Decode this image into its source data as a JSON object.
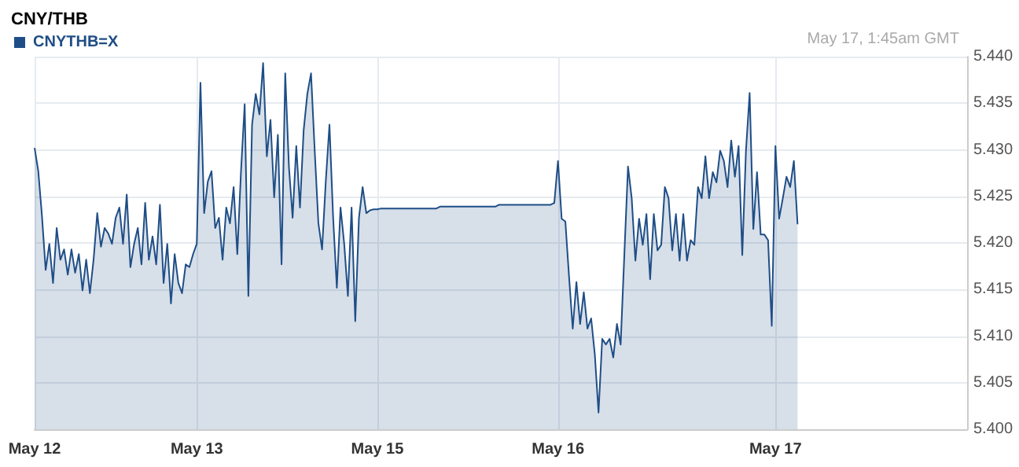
{
  "chart_data": {
    "type": "area",
    "title": "CNY/THB",
    "annotations": [
      "May 17, 1:45am GMT"
    ],
    "categories": [
      "May 12",
      null,
      null,
      null,
      null,
      null,
      null,
      null,
      null,
      null,
      null,
      null,
      null,
      null,
      null,
      null,
      null,
      null,
      null,
      null,
      null,
      null,
      null,
      null,
      null,
      null,
      null,
      null,
      null,
      null,
      null,
      null,
      null,
      null,
      null,
      null,
      null,
      null,
      null,
      null,
      null,
      null,
      null,
      null,
      "May 13",
      null,
      null,
      null,
      null,
      null,
      null,
      null,
      null,
      null,
      null,
      null,
      null,
      null,
      null,
      null,
      null,
      null,
      null,
      null,
      null,
      null,
      null,
      null,
      null,
      null,
      null,
      null,
      null,
      null,
      null,
      null,
      null,
      null,
      null,
      null,
      null,
      null,
      null,
      null,
      null,
      null,
      null,
      null,
      null,
      null,
      null,
      null,
      null,
      "May 15",
      null,
      null,
      null,
      null,
      null,
      null,
      null,
      null,
      null,
      null,
      null,
      null,
      null,
      null,
      null,
      null,
      null,
      null,
      null,
      null,
      null,
      null,
      null,
      null,
      null,
      null,
      null,
      null,
      null,
      null,
      null,
      null,
      null,
      null,
      null,
      null,
      null,
      null,
      null,
      null,
      null,
      null,
      null,
      null,
      null,
      null,
      null,
      null,
      "May 16",
      null,
      null,
      null,
      null,
      null,
      null,
      null,
      null,
      null,
      null,
      null,
      null,
      null,
      null,
      null,
      null,
      null,
      null,
      null,
      null,
      null,
      null,
      null,
      null,
      null,
      null,
      null,
      null,
      null,
      null,
      null,
      null,
      null,
      null,
      null,
      null,
      null,
      null,
      null,
      null,
      null,
      null,
      null,
      null,
      null,
      null,
      null,
      null,
      null,
      null,
      null,
      null,
      null,
      null,
      null,
      null,
      null,
      null,
      "May 17",
      null,
      null,
      null,
      null,
      null,
      null,
      null,
      null,
      null,
      null,
      null,
      null,
      null,
      null,
      null,
      null,
      null,
      null,
      null,
      null,
      null,
      null,
      null,
      null,
      null,
      null,
      null,
      null,
      null,
      null,
      null,
      null,
      null,
      null,
      null,
      null,
      null,
      null,
      null,
      null,
      null,
      null,
      null,
      null,
      null,
      null,
      null,
      null,
      null,
      null,
      null,
      null
    ],
    "series": [
      {
        "name": "CNYTHB=X",
        "color": "#1f4e86",
        "values": [
          5.4302,
          5.4277,
          5.4229,
          5.4171,
          5.4199,
          5.4157,
          5.4216,
          5.4182,
          5.4193,
          5.4166,
          5.4193,
          5.4168,
          5.4188,
          5.4149,
          5.4182,
          5.4146,
          5.4182,
          5.4232,
          5.4196,
          5.4216,
          5.421,
          5.4199,
          5.4227,
          5.4238,
          5.4199,
          5.4252,
          5.4174,
          5.4199,
          5.4216,
          5.4177,
          5.4243,
          5.4182,
          5.4207,
          5.4177,
          5.4241,
          5.4157,
          5.4199,
          5.4135,
          5.4188,
          5.4157,
          5.4146,
          5.4177,
          5.4174,
          5.4188,
          5.4199,
          5.4372,
          5.4232,
          5.4266,
          5.4277,
          5.4216,
          5.4227,
          5.4182,
          5.4238,
          5.4221,
          5.426,
          5.4188,
          5.4277,
          5.4349,
          5.4143,
          5.4327,
          5.436,
          5.4338,
          5.4393,
          5.4293,
          5.4332,
          5.4249,
          5.4316,
          5.4177,
          5.4382,
          5.4282,
          5.4227,
          5.4304,
          5.4238,
          5.4321,
          5.436,
          5.4382,
          5.4299,
          5.4221,
          5.4193,
          5.4266,
          5.4327,
          5.4227,
          5.4152,
          5.4238,
          5.4199,
          5.4143,
          5.4238,
          5.4116,
          5.4227,
          5.426,
          5.4232,
          5.4235,
          5.4236,
          5.4236,
          5.4237,
          5.4237,
          5.4237,
          5.4237,
          5.4237,
          5.4237,
          5.4237,
          5.4237,
          5.4237,
          5.4237,
          5.4237,
          5.4237,
          5.4237,
          5.4237,
          5.4237,
          5.4237,
          5.4239,
          5.4239,
          5.4239,
          5.4239,
          5.4239,
          5.4239,
          5.4239,
          5.4239,
          5.4239,
          5.4239,
          5.4239,
          5.4239,
          5.4239,
          5.4239,
          5.4239,
          5.4239,
          5.4241,
          5.4241,
          5.4241,
          5.4241,
          5.4241,
          5.4241,
          5.4241,
          5.4241,
          5.4241,
          5.4241,
          5.4241,
          5.4241,
          5.4241,
          5.4241,
          5.4241,
          5.4243,
          5.4288,
          5.4226,
          5.4223,
          5.4164,
          5.4108,
          5.4158,
          5.4113,
          5.4147,
          5.4108,
          5.4119,
          5.408,
          5.4018,
          5.4097,
          5.4091,
          5.4097,
          5.4077,
          5.4113,
          5.4091,
          5.4187,
          5.4282,
          5.4248,
          5.4181,
          5.4226,
          5.4198,
          5.4231,
          5.4161,
          5.4231,
          5.4192,
          5.4198,
          5.426,
          5.4248,
          5.4192,
          5.4231,
          5.4181,
          5.4231,
          5.4181,
          5.4203,
          5.4198,
          5.426,
          5.4248,
          5.4293,
          5.4248,
          5.4276,
          5.4265,
          5.4299,
          5.4288,
          5.426,
          5.431,
          5.4271,
          5.4304,
          5.4187,
          5.4299,
          5.4361,
          5.4215,
          5.4276,
          5.4209,
          5.4209,
          5.4203,
          5.4111,
          5.4304,
          5.4226,
          5.4248,
          5.4271,
          5.426,
          5.4288,
          5.422,
          null,
          null,
          null,
          null,
          null,
          null,
          null,
          null,
          null,
          null,
          null,
          null,
          null,
          null,
          null,
          null,
          null,
          null,
          null,
          null,
          null,
          null,
          null,
          null,
          null,
          null,
          null,
          null,
          null,
          null,
          null,
          null,
          null,
          null,
          null,
          null,
          null,
          null,
          null,
          null,
          null,
          null,
          null,
          null,
          null,
          null
        ]
      }
    ],
    "ylim": [
      5.4,
      5.44
    ],
    "yticks": [
      {
        "value": 5.4,
        "label": "5.400"
      },
      {
        "value": 5.405,
        "label": "5.405"
      },
      {
        "value": 5.41,
        "label": "5.410"
      },
      {
        "value": 5.415,
        "label": "5.415"
      },
      {
        "value": 5.42,
        "label": "5.420"
      },
      {
        "value": 5.425,
        "label": "5.425"
      },
      {
        "value": 5.43,
        "label": "5.430"
      },
      {
        "value": 5.435,
        "label": "5.435"
      },
      {
        "value": 5.44,
        "label": "5.440"
      }
    ],
    "grid": true,
    "legend": "top left",
    "marker": "none",
    "line_style": "solid"
  }
}
